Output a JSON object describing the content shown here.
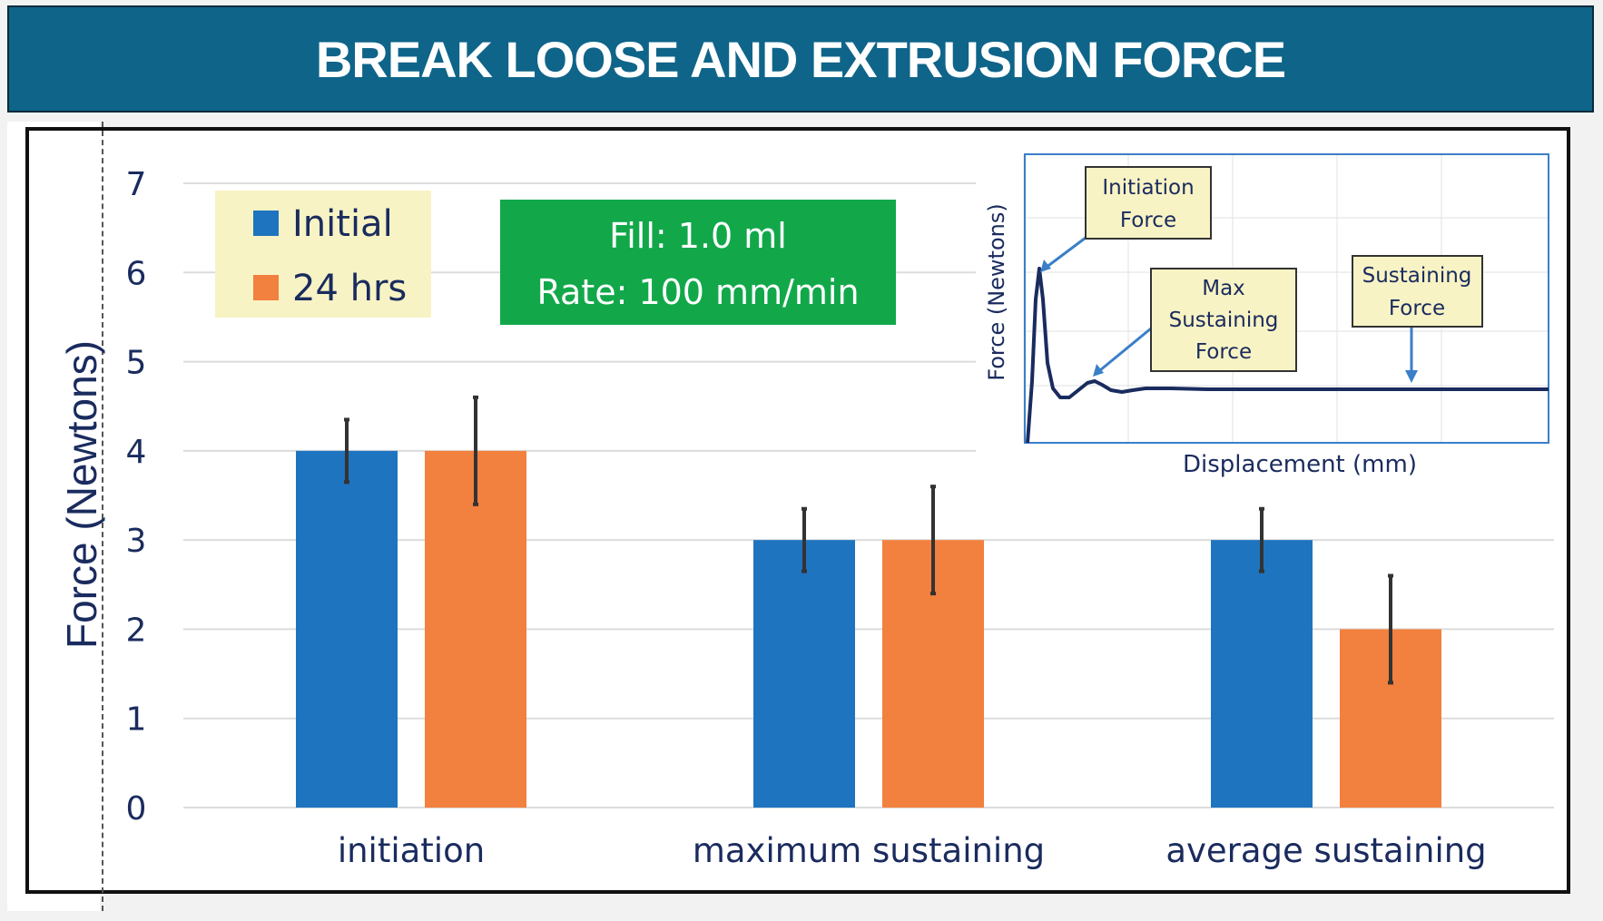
{
  "title": "BREAK LOOSE AND EXTRUSION FORCE",
  "colors": {
    "initial": "#1f74bf",
    "h24": "#f2803e",
    "title_bg": "#0f6489",
    "legend_bg": "#f8f3c4",
    "note_bg": "#12a84a",
    "navy": "#1a2b5e",
    "inset_blue": "#3a7fc8"
  },
  "chart_data": {
    "type": "bar",
    "ylabel": "Force (Newtons)",
    "xlabel": "",
    "ylim": [
      0,
      7
    ],
    "yticks": [
      "0",
      "1",
      "2",
      "3",
      "4",
      "5",
      "6",
      "7"
    ],
    "grid": true,
    "legend_position": "top-left",
    "categories": [
      "initiation",
      "maximum sustaining",
      "average sustaining"
    ],
    "series": [
      {
        "name": "Initial",
        "values": [
          4,
          3,
          3
        ],
        "error_low": [
          3.65,
          2.65,
          2.65
        ],
        "error_high": [
          4.35,
          3.35,
          3.35
        ]
      },
      {
        "name": "24 hrs",
        "values": [
          4,
          3,
          2
        ],
        "error_low": [
          3.4,
          2.4,
          1.4
        ],
        "error_high": [
          4.6,
          3.6,
          2.6
        ]
      }
    ]
  },
  "note": {
    "line1": "Fill:  1.0 ml",
    "line2": "Rate:  100 mm/min"
  },
  "inset": {
    "ylabel": "Force (Newtons)",
    "xlabel": "Displacement (mm)",
    "callouts": {
      "initiation": [
        "Initiation",
        "Force"
      ],
      "max": [
        "Max",
        "Sustaining",
        "Force"
      ],
      "sustaining": [
        "Sustaining",
        "Force"
      ]
    }
  }
}
